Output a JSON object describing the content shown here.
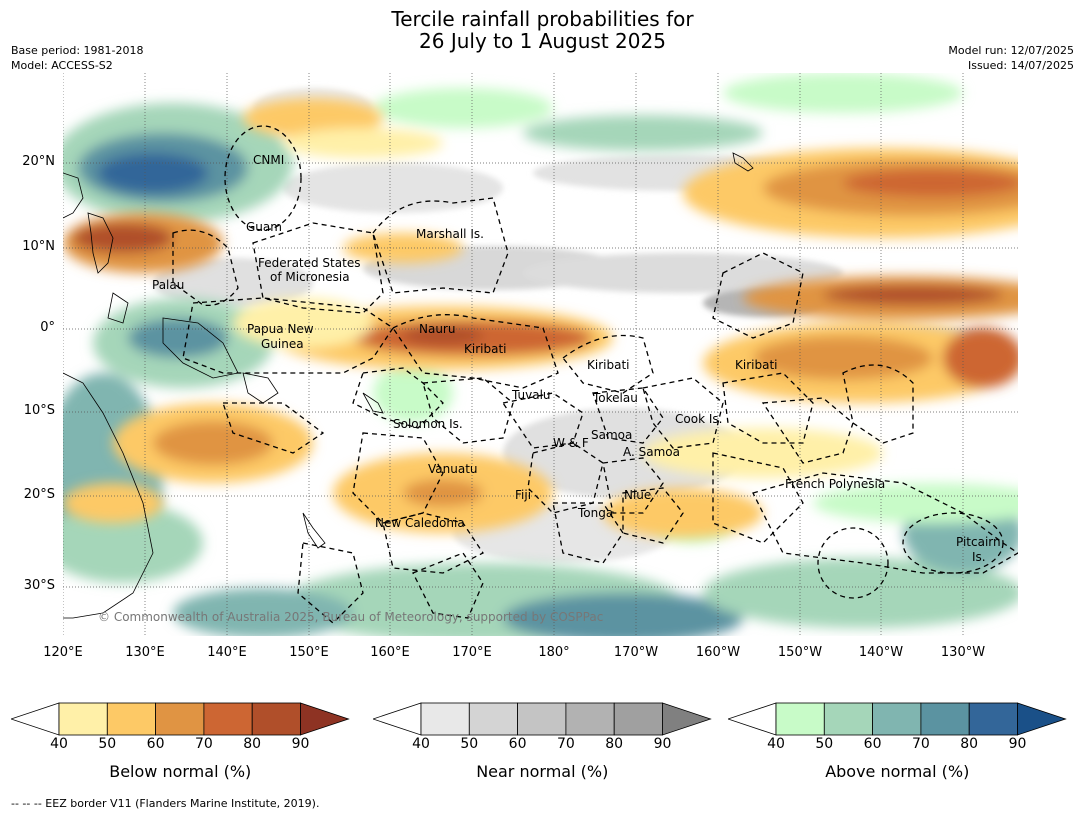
{
  "title_line1": "Tercile rainfall probabilities for",
  "title_line2": "26 July to 1 August 2025",
  "meta_left": [
    "Base period: 1981-2018",
    "Model: ACCESS-S2"
  ],
  "meta_right": [
    "Model run: 12/07/2025",
    "Issued: 14/07/2025"
  ],
  "lon_ticks": [
    "120°E",
    "130°E",
    "140°E",
    "150°E",
    "160°E",
    "170°E",
    "180°",
    "170°W",
    "160°W",
    "150°W",
    "140°W",
    "130°W"
  ],
  "lat_ticks": [
    "20°N",
    "10°N",
    "0°",
    "10°S",
    "20°S",
    "30°S"
  ],
  "copyright": "© Commonwealth of Australia 2025, Bureau of Meteorology, supported by COSPPac",
  "places": [
    {
      "name": "CNMI"
    },
    {
      "name": "Guam"
    },
    {
      "name": "Marshall Is."
    },
    {
      "name": "Federated States"
    },
    {
      "name": "of Micronesia"
    },
    {
      "name": "Palau"
    },
    {
      "name": "Papua New"
    },
    {
      "name": "Guinea"
    },
    {
      "name": "Nauru"
    },
    {
      "name": "Kiribati"
    },
    {
      "name": "Kiribati"
    },
    {
      "name": "Kiribati"
    },
    {
      "name": "Tuvalu"
    },
    {
      "name": "Tokelau"
    },
    {
      "name": "Solomon Is."
    },
    {
      "name": "Cook Is."
    },
    {
      "name": "Samoa"
    },
    {
      "name": "W & F"
    },
    {
      "name": "A. Samoa"
    },
    {
      "name": "Vanuatu"
    },
    {
      "name": "Fiji"
    },
    {
      "name": "Niue"
    },
    {
      "name": "French Polynesia"
    },
    {
      "name": "Tonga"
    },
    {
      "name": "New Caledonia"
    },
    {
      "name": "Pitcairn"
    },
    {
      "name": "Is."
    }
  ],
  "colorbars": [
    {
      "label": "Below normal (%)",
      "ticks": [
        "40",
        "50",
        "60",
        "70",
        "80",
        "90"
      ],
      "colors": [
        "#fff0a8",
        "#fdc966",
        "#e09443",
        "#cd6633",
        "#b04f2a",
        "#8e3323"
      ]
    },
    {
      "label": "Near normal (%)",
      "ticks": [
        "40",
        "50",
        "60",
        "70",
        "80",
        "90"
      ],
      "colors": [
        "#e8e8e8",
        "#d4d4d4",
        "#c4c4c4",
        "#b2b2b2",
        "#a0a0a0",
        "#808080"
      ]
    },
    {
      "label": "Above normal (%)",
      "ticks": [
        "40",
        "50",
        "60",
        "70",
        "80",
        "90"
      ],
      "colors": [
        "#c8fbc8",
        "#a5d6b9",
        "#80b5b0",
        "#5b93a1",
        "#336699",
        "#1a5088"
      ]
    }
  ],
  "footnote": "--  --  -- EEZ border V11 (Flanders Marine Institute, 2019)."
}
